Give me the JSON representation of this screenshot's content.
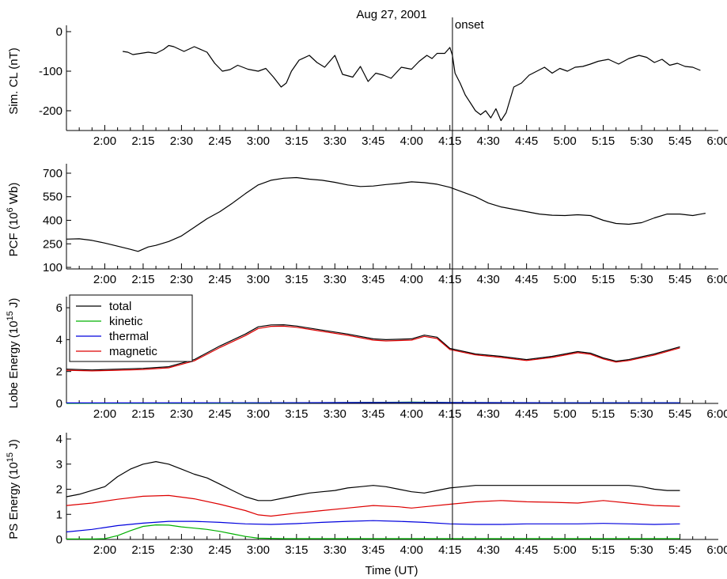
{
  "figure_title": "Aug 27, 2001",
  "onset_label": "onset",
  "onset_time": "4:16",
  "x_axis_label": "Time (UT)",
  "chart_data": [
    {
      "type": "line",
      "panel": "sim-cl",
      "ylabel": "Sim. CL (nT)",
      "ylim": [
        -250,
        0
      ],
      "yticks": [
        0,
        -100,
        -200
      ],
      "xlim": [
        "1:45",
        "6:00"
      ],
      "xticks": [
        "2:00",
        "2:15",
        "2:30",
        "2:45",
        "3:00",
        "3:15",
        "3:30",
        "3:45",
        "4:00",
        "4:15",
        "4:30",
        "4:45",
        "5:00",
        "5:15",
        "5:30",
        "5:45",
        "6:00"
      ],
      "series": [
        {
          "color": "#000000",
          "x": [
            "2:07",
            "2:09",
            "2:11",
            "2:14",
            "2:17",
            "2:20",
            "2:23",
            "2:25",
            "2:27",
            "2:31",
            "2:35",
            "2:40",
            "2:43",
            "2:46",
            "2:49",
            "2:52",
            "2:56",
            "3:00",
            "3:03",
            "3:06",
            "3:09",
            "3:11",
            "3:13",
            "3:16",
            "3:20",
            "3:23",
            "3:26",
            "3:30",
            "3:33",
            "3:37",
            "3:40",
            "3:43",
            "3:46",
            "3:49",
            "3:52",
            "3:56",
            "4:00",
            "4:03",
            "4:06",
            "4:08",
            "4:10",
            "4:13",
            "4:15",
            "4:16",
            "4:17",
            "4:19",
            "4:21",
            "4:23",
            "4:25",
            "4:27",
            "4:29",
            "4:31",
            "4:33",
            "4:35",
            "4:37",
            "4:40",
            "4:43",
            "4:46",
            "4:49",
            "4:52",
            "4:55",
            "4:58",
            "5:01",
            "5:04",
            "5:07",
            "5:10",
            "5:13",
            "5:17",
            "5:21",
            "5:25",
            "5:29",
            "5:32",
            "5:35",
            "5:38",
            "5:41",
            "5:44",
            "5:47",
            "5:50",
            "5:53"
          ],
          "values": [
            -50,
            -52,
            -58,
            -55,
            -52,
            -55,
            -45,
            -35,
            -38,
            -50,
            -38,
            -52,
            -80,
            -100,
            -96,
            -85,
            -95,
            -100,
            -93,
            -115,
            -140,
            -130,
            -100,
            -72,
            -60,
            -78,
            -90,
            -60,
            -108,
            -115,
            -88,
            -126,
            -105,
            -110,
            -118,
            -90,
            -95,
            -75,
            -60,
            -68,
            -55,
            -55,
            -40,
            -60,
            -105,
            -130,
            -160,
            -180,
            -200,
            -210,
            -200,
            -218,
            -195,
            -225,
            -205,
            -140,
            -130,
            -110,
            -100,
            -90,
            -105,
            -93,
            -100,
            -90,
            -88,
            -82,
            -75,
            -70,
            -82,
            -68,
            -60,
            -65,
            -78,
            -70,
            -85,
            -80,
            -88,
            -90,
            -98
          ]
        }
      ]
    },
    {
      "type": "line",
      "panel": "pcf",
      "ylabel": "PCF (10",
      "ylabel_sup": "6",
      "ylabel_tail": " Wb)",
      "ylim": [
        90,
        720
      ],
      "yticks": [
        100,
        250,
        400,
        550,
        700
      ],
      "xlim": [
        "1:45",
        "6:00"
      ],
      "xticks": [
        "2:00",
        "2:15",
        "2:30",
        "2:45",
        "3:00",
        "3:15",
        "3:30",
        "3:45",
        "4:00",
        "4:15",
        "4:30",
        "4:45",
        "5:00",
        "5:15",
        "5:30",
        "5:45",
        "6:00"
      ],
      "series": [
        {
          "color": "#000000",
          "x": [
            "1:45",
            "1:50",
            "1:55",
            "2:00",
            "2:05",
            "2:10",
            "2:13",
            "2:17",
            "2:20",
            "2:25",
            "2:30",
            "2:35",
            "2:40",
            "2:45",
            "2:50",
            "2:55",
            "3:00",
            "3:05",
            "3:10",
            "3:15",
            "3:20",
            "3:25",
            "3:30",
            "3:35",
            "3:40",
            "3:45",
            "3:50",
            "3:55",
            "4:00",
            "4:05",
            "4:10",
            "4:15",
            "4:20",
            "4:25",
            "4:30",
            "4:35",
            "4:40",
            "4:45",
            "4:50",
            "4:55",
            "5:00",
            "5:05",
            "5:10",
            "5:15",
            "5:20",
            "5:25",
            "5:30",
            "5:35",
            "5:40",
            "5:45",
            "5:50",
            "5:55"
          ],
          "values": [
            280,
            282,
            272,
            255,
            235,
            215,
            202,
            230,
            240,
            265,
            300,
            355,
            410,
            455,
            510,
            570,
            625,
            655,
            668,
            672,
            662,
            655,
            642,
            625,
            615,
            618,
            628,
            635,
            645,
            640,
            630,
            610,
            580,
            550,
            510,
            485,
            470,
            455,
            440,
            432,
            430,
            435,
            430,
            400,
            380,
            375,
            385,
            415,
            440,
            440,
            430,
            445
          ]
        }
      ]
    },
    {
      "type": "line",
      "panel": "lobe-energy",
      "ylabel": "Lobe Energy (10",
      "ylabel_sup": "15",
      "ylabel_tail": " J)",
      "ylim": [
        0,
        6.3
      ],
      "yticks": [
        0,
        2,
        4,
        6
      ],
      "xlim": [
        "1:45",
        "6:00"
      ],
      "xticks": [
        "2:00",
        "2:15",
        "2:30",
        "2:45",
        "3:00",
        "3:15",
        "3:30",
        "3:45",
        "4:00",
        "4:15",
        "4:30",
        "4:45",
        "5:00",
        "5:15",
        "5:30",
        "5:45",
        "6:00"
      ],
      "legend": [
        "total",
        "kinetic",
        "thermal",
        "magnetic"
      ],
      "legend_position": "top-left",
      "series": [
        {
          "name": "total",
          "color": "#000000",
          "x": [
            "1:45",
            "1:55",
            "2:05",
            "2:15",
            "2:25",
            "2:35",
            "2:45",
            "2:55",
            "3:00",
            "3:05",
            "3:10",
            "3:15",
            "3:25",
            "3:35",
            "3:45",
            "3:50",
            "4:00",
            "4:05",
            "4:10",
            "4:15",
            "4:25",
            "4:35",
            "4:45",
            "4:55",
            "5:00",
            "5:05",
            "5:10",
            "5:15",
            "5:20",
            "5:25",
            "5:35",
            "5:45"
          ],
          "values": [
            2.15,
            2.1,
            2.15,
            2.2,
            2.3,
            2.75,
            3.6,
            4.35,
            4.8,
            4.92,
            4.93,
            4.85,
            4.6,
            4.35,
            4.05,
            4.0,
            4.05,
            4.28,
            4.15,
            3.45,
            3.1,
            2.95,
            2.75,
            2.95,
            3.1,
            3.25,
            3.15,
            2.85,
            2.65,
            2.75,
            3.1,
            3.55
          ]
        },
        {
          "name": "kinetic",
          "color": "#00b000",
          "x": [
            "1:45",
            "2:45",
            "3:30",
            "4:00",
            "4:15",
            "5:00",
            "5:45"
          ],
          "values": [
            0.0,
            0.02,
            0.05,
            0.08,
            0.06,
            0.04,
            0.04
          ]
        },
        {
          "name": "thermal",
          "color": "#0000dd",
          "x": [
            "1:45",
            "2:45",
            "3:30",
            "4:00",
            "4:15",
            "5:00",
            "5:45"
          ],
          "values": [
            0.03,
            0.04,
            0.05,
            0.06,
            0.05,
            0.04,
            0.04
          ]
        },
        {
          "name": "magnetic",
          "color": "#dd0000",
          "x": [
            "1:45",
            "1:55",
            "2:05",
            "2:15",
            "2:25",
            "2:35",
            "2:45",
            "2:55",
            "3:00",
            "3:05",
            "3:10",
            "3:15",
            "3:25",
            "3:35",
            "3:45",
            "3:50",
            "4:00",
            "4:05",
            "4:10",
            "4:15",
            "4:25",
            "4:35",
            "4:45",
            "4:55",
            "5:00",
            "5:05",
            "5:10",
            "5:15",
            "5:20",
            "5:25",
            "5:35",
            "5:45"
          ],
          "values": [
            2.08,
            2.04,
            2.08,
            2.13,
            2.23,
            2.67,
            3.5,
            4.25,
            4.7,
            4.83,
            4.84,
            4.77,
            4.52,
            4.27,
            3.97,
            3.92,
            3.97,
            4.2,
            4.07,
            3.38,
            3.04,
            2.88,
            2.69,
            2.88,
            3.03,
            3.18,
            3.08,
            2.79,
            2.59,
            2.69,
            3.03,
            3.48
          ]
        }
      ]
    },
    {
      "type": "line",
      "panel": "ps-energy",
      "ylabel": "PS Energy (10",
      "ylabel_sup": "15",
      "ylabel_tail": " J)",
      "ylim": [
        0,
        4
      ],
      "yticks": [
        0,
        1,
        2,
        3,
        4
      ],
      "xlim": [
        "1:45",
        "6:00"
      ],
      "xticks": [
        "2:00",
        "2:15",
        "2:30",
        "2:45",
        "3:00",
        "3:15",
        "3:30",
        "3:45",
        "4:00",
        "4:15",
        "4:30",
        "4:45",
        "5:00",
        "5:15",
        "5:30",
        "5:45",
        "6:00"
      ],
      "series": [
        {
          "name": "total",
          "color": "#000000",
          "x": [
            "1:45",
            "1:50",
            "1:55",
            "2:00",
            "2:05",
            "2:10",
            "2:15",
            "2:20",
            "2:25",
            "2:30",
            "2:35",
            "2:40",
            "2:45",
            "2:50",
            "2:55",
            "3:00",
            "3:05",
            "3:10",
            "3:15",
            "3:20",
            "3:25",
            "3:30",
            "3:35",
            "3:40",
            "3:45",
            "3:50",
            "3:55",
            "4:00",
            "4:05",
            "4:10",
            "4:15",
            "4:20",
            "4:25",
            "4:30",
            "4:35",
            "4:40",
            "4:45",
            "4:50",
            "4:55",
            "5:00",
            "5:05",
            "5:10",
            "5:15",
            "5:20",
            "5:25",
            "5:30",
            "5:35",
            "5:40",
            "5:45"
          ],
          "values": [
            1.7,
            1.8,
            1.95,
            2.1,
            2.5,
            2.8,
            3.0,
            3.1,
            3.0,
            2.8,
            2.6,
            2.45,
            2.2,
            1.95,
            1.7,
            1.55,
            1.55,
            1.65,
            1.75,
            1.85,
            1.9,
            1.95,
            2.05,
            2.1,
            2.15,
            2.1,
            2.0,
            1.9,
            1.85,
            1.95,
            2.05,
            2.1,
            2.15,
            2.15,
            2.15,
            2.15,
            2.15,
            2.15,
            2.15,
            2.15,
            2.15,
            2.15,
            2.15,
            2.15,
            2.15,
            2.1,
            2.0,
            1.95,
            1.95
          ]
        },
        {
          "name": "kinetic",
          "color": "#00b000",
          "x": [
            "1:45",
            "1:55",
            "2:00",
            "2:05",
            "2:10",
            "2:15",
            "2:20",
            "2:25",
            "2:30",
            "2:35",
            "2:40",
            "2:45",
            "2:50",
            "2:55",
            "3:00",
            "3:10",
            "3:30",
            "4:00",
            "4:30",
            "5:00",
            "5:30",
            "5:45"
          ],
          "values": [
            0.02,
            0.02,
            0.03,
            0.15,
            0.35,
            0.52,
            0.58,
            0.57,
            0.5,
            0.45,
            0.4,
            0.32,
            0.22,
            0.12,
            0.05,
            0.03,
            0.03,
            0.03,
            0.03,
            0.03,
            0.03,
            0.03
          ]
        },
        {
          "name": "thermal",
          "color": "#0000dd",
          "x": [
            "1:45",
            "1:55",
            "2:05",
            "2:15",
            "2:25",
            "2:35",
            "2:45",
            "2:55",
            "3:05",
            "3:15",
            "3:25",
            "3:35",
            "3:45",
            "3:55",
            "4:05",
            "4:15",
            "4:25",
            "4:35",
            "4:45",
            "4:55",
            "5:05",
            "5:15",
            "5:25",
            "5:35",
            "5:45"
          ],
          "values": [
            0.3,
            0.4,
            0.55,
            0.65,
            0.72,
            0.72,
            0.68,
            0.62,
            0.6,
            0.63,
            0.68,
            0.72,
            0.75,
            0.72,
            0.68,
            0.62,
            0.6,
            0.6,
            0.62,
            0.62,
            0.62,
            0.64,
            0.62,
            0.6,
            0.62
          ]
        },
        {
          "name": "magnetic",
          "color": "#dd0000",
          "x": [
            "1:45",
            "1:55",
            "2:05",
            "2:15",
            "2:25",
            "2:35",
            "2:45",
            "2:55",
            "3:00",
            "3:05",
            "3:15",
            "3:25",
            "3:35",
            "3:45",
            "3:55",
            "4:00",
            "4:05",
            "4:15",
            "4:25",
            "4:35",
            "4:45",
            "4:55",
            "5:05",
            "5:15",
            "5:25",
            "5:35",
            "5:45"
          ],
          "values": [
            1.35,
            1.45,
            1.6,
            1.72,
            1.75,
            1.62,
            1.4,
            1.15,
            0.98,
            0.93,
            1.05,
            1.15,
            1.25,
            1.35,
            1.3,
            1.25,
            1.3,
            1.4,
            1.5,
            1.55,
            1.5,
            1.48,
            1.45,
            1.55,
            1.45,
            1.35,
            1.32
          ]
        }
      ]
    }
  ]
}
